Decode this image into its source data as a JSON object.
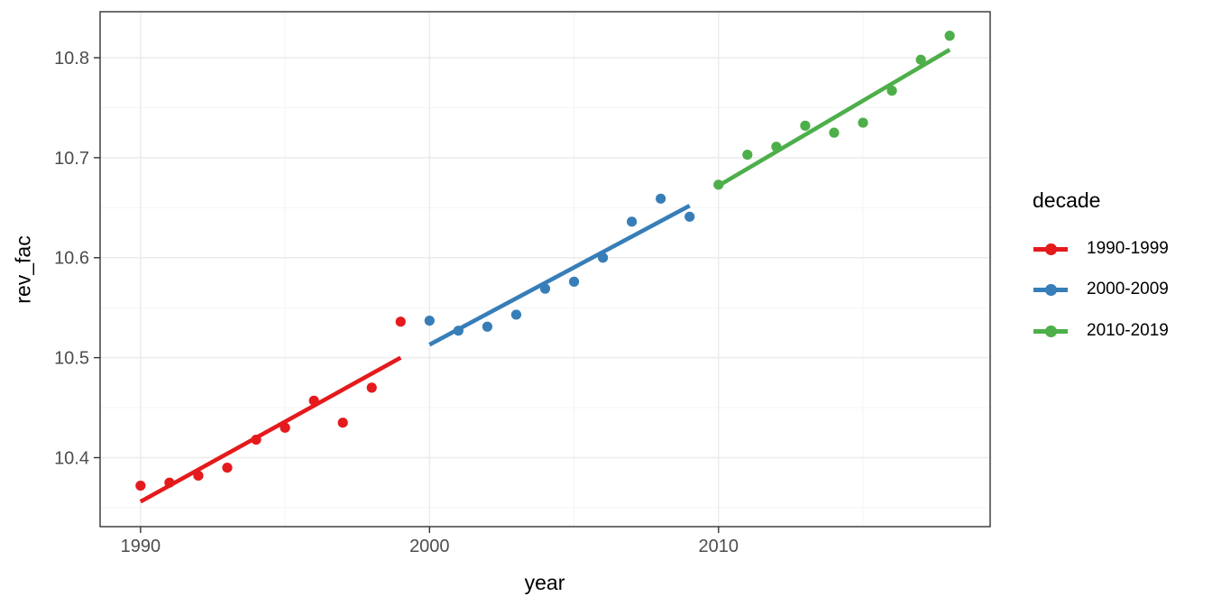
{
  "figure": {
    "background": "#ffffff",
    "panel_border_color": "#333333",
    "grid_major_color": "#ebebeb",
    "grid_minor_color": "#f4f4f4",
    "tick_color": "#333333",
    "tick_label_color": "#4d4d4d"
  },
  "chart_data": {
    "type": "scatter",
    "title": "",
    "xlabel": "year",
    "ylabel": "rev_fac",
    "xlim": [
      1988.6,
      2019.4
    ],
    "ylim": [
      10.331,
      10.846
    ],
    "x_major_ticks": [
      1990,
      2000,
      2010
    ],
    "x_minor_ticks": [
      1995,
      2005,
      2015
    ],
    "y_major_ticks": [
      10.4,
      10.5,
      10.6,
      10.7,
      10.8
    ],
    "y_minor_ticks": [
      10.35,
      10.45,
      10.55,
      10.65,
      10.75
    ],
    "grid": true,
    "legend": {
      "title": "decade",
      "position": "right"
    },
    "series": [
      {
        "name": "1990-1999",
        "color": "#E41A1C",
        "x": [
          1990,
          1991,
          1992,
          1993,
          1994,
          1995,
          1996,
          1997,
          1998,
          1999
        ],
        "y": [
          10.372,
          10.375,
          10.382,
          10.39,
          10.418,
          10.43,
          10.457,
          10.435,
          10.47,
          10.536
        ],
        "trend": {
          "x": [
            1990,
            1999
          ],
          "y": [
            10.356,
            10.5
          ]
        }
      },
      {
        "name": "2000-2009",
        "color": "#377EB8",
        "x": [
          2000,
          2001,
          2002,
          2003,
          2004,
          2005,
          2006,
          2007,
          2008,
          2009
        ],
        "y": [
          10.537,
          10.527,
          10.531,
          10.543,
          10.569,
          10.576,
          10.6,
          10.636,
          10.659,
          10.641
        ],
        "trend": {
          "x": [
            2000,
            2009
          ],
          "y": [
            10.513,
            10.652
          ]
        }
      },
      {
        "name": "2010-2019",
        "color": "#4DAF4A",
        "x": [
          2010,
          2011,
          2012,
          2013,
          2014,
          2015,
          2016,
          2017,
          2018
        ],
        "y": [
          10.673,
          10.703,
          10.711,
          10.732,
          10.725,
          10.735,
          10.767,
          10.798,
          10.822
        ],
        "trend": {
          "x": [
            2010,
            2018
          ],
          "y": [
            10.672,
            10.808
          ]
        }
      }
    ]
  }
}
